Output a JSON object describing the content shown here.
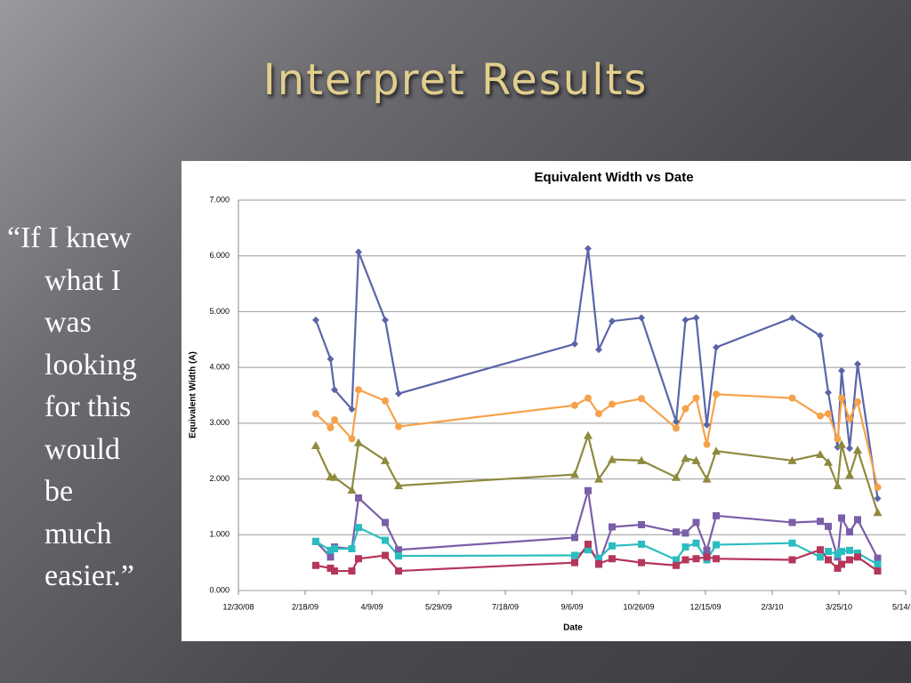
{
  "slide_title": "Interpret Results",
  "quote_lines": [
    "“If I knew",
    "what I",
    "was",
    "looking",
    "for this",
    "would",
    "be",
    "much",
    "easier.”"
  ],
  "chart_data": {
    "type": "line",
    "title": "Equivalent Width vs Date",
    "x_label": "Date",
    "y_label": "Equivalent Width (A)",
    "x": [
      "2009-02-26",
      "2009-03-09",
      "2009-03-12",
      "2009-03-25",
      "2009-03-30",
      "2009-04-19",
      "2009-04-29",
      "2009-09-08",
      "2009-09-18",
      "2009-09-26",
      "2009-10-06",
      "2009-10-28",
      "2009-11-23",
      "2009-11-30",
      "2009-12-08",
      "2009-12-16",
      "2009-12-23",
      "2010-02-18",
      "2010-03-11",
      "2010-03-17",
      "2010-03-24",
      "2010-03-27",
      "2010-04-02",
      "2010-04-08",
      "2010-04-23"
    ],
    "xlim": [
      "2008-12-30",
      "2010-05-14"
    ],
    "xticks": [
      {
        "value": "2008-12-30",
        "label": "12/30/08"
      },
      {
        "value": "2009-02-18",
        "label": "2/18/09"
      },
      {
        "value": "2009-04-09",
        "label": "4/9/09"
      },
      {
        "value": "2009-05-29",
        "label": "5/29/09"
      },
      {
        "value": "2009-07-18",
        "label": "7/18/09"
      },
      {
        "value": "2009-09-06",
        "label": "9/6/09"
      },
      {
        "value": "2009-10-26",
        "label": "10/26/09"
      },
      {
        "value": "2009-12-15",
        "label": "12/15/09"
      },
      {
        "value": "2010-02-03",
        "label": "2/3/10"
      },
      {
        "value": "2010-03-25",
        "label": "3/25/10"
      },
      {
        "value": "2010-05-14",
        "label": "5/14/10"
      }
    ],
    "ylim": [
      0,
      7
    ],
    "yticks": [
      {
        "value": 0,
        "label": "0.000"
      },
      {
        "value": 1,
        "label": "1.000"
      },
      {
        "value": 2,
        "label": "2.000"
      },
      {
        "value": 3,
        "label": "3.000"
      },
      {
        "value": 4,
        "label": "4.000"
      },
      {
        "value": 5,
        "label": "5.000"
      },
      {
        "value": 6,
        "label": "6.000"
      },
      {
        "value": 7,
        "label": "7.000"
      }
    ],
    "grid": true,
    "series": [
      {
        "color": "#5a65a8",
        "marker": "diamond",
        "values": [
          4.85,
          4.15,
          3.6,
          3.25,
          6.07,
          4.85,
          3.53,
          4.42,
          6.13,
          4.32,
          4.83,
          4.89,
          3.03,
          4.85,
          4.89,
          2.97,
          4.36,
          4.89,
          4.57,
          3.55,
          2.57,
          3.94,
          2.55,
          4.06,
          1.65
        ]
      },
      {
        "color": "#f6a24a",
        "marker": "circle",
        "values": [
          3.17,
          2.92,
          3.06,
          2.72,
          3.6,
          3.4,
          2.94,
          3.32,
          3.45,
          3.17,
          3.34,
          3.44,
          2.91,
          3.26,
          3.45,
          2.62,
          3.52,
          3.45,
          3.13,
          3.17,
          2.72,
          3.45,
          3.08,
          3.38,
          1.85
        ]
      },
      {
        "color": "#8e8a3e",
        "marker": "triangle",
        "values": [
          2.6,
          2.04,
          2.03,
          1.8,
          2.65,
          2.33,
          1.88,
          2.08,
          2.78,
          2.0,
          2.35,
          2.33,
          2.03,
          2.37,
          2.33,
          2.0,
          2.5,
          2.33,
          2.44,
          2.3,
          1.88,
          2.62,
          2.07,
          2.52,
          1.4
        ]
      },
      {
        "color": "#7b5ea8",
        "marker": "square",
        "values": [
          0.88,
          0.6,
          0.78,
          0.75,
          1.66,
          1.22,
          0.73,
          0.95,
          1.79,
          0.47,
          1.14,
          1.18,
          1.05,
          1.03,
          1.22,
          0.72,
          1.34,
          1.22,
          1.24,
          1.15,
          0.6,
          1.3,
          1.05,
          1.27,
          0.58
        ]
      },
      {
        "color": "#2bbcc0",
        "marker": "square",
        "values": [
          0.88,
          0.72,
          0.75,
          0.75,
          1.13,
          0.9,
          0.62,
          0.63,
          0.73,
          0.58,
          0.8,
          0.83,
          0.55,
          0.78,
          0.85,
          0.55,
          0.82,
          0.85,
          0.6,
          0.7,
          0.65,
          0.7,
          0.72,
          0.67,
          0.47
        ]
      },
      {
        "color": "#b5365a",
        "marker": "square",
        "values": [
          0.45,
          0.4,
          0.35,
          0.35,
          0.57,
          0.63,
          0.35,
          0.5,
          0.83,
          0.48,
          0.57,
          0.5,
          0.45,
          0.55,
          0.57,
          0.6,
          0.57,
          0.55,
          0.73,
          0.55,
          0.4,
          0.47,
          0.55,
          0.6,
          0.35
        ]
      }
    ]
  }
}
